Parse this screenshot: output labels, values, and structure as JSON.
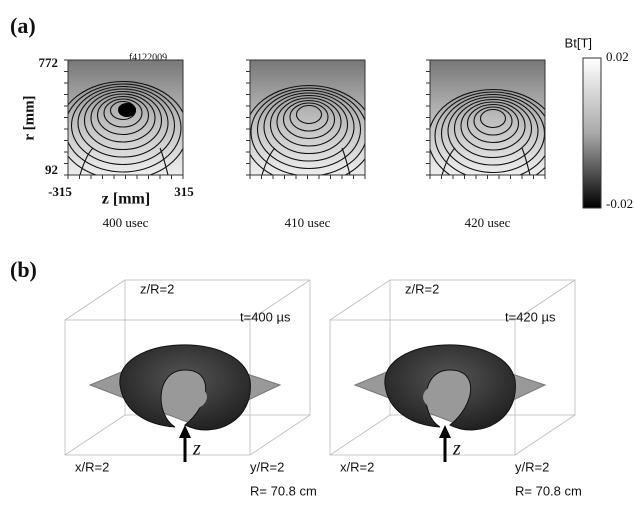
{
  "panel_a": {
    "label": "(a)",
    "shot": "f4122009",
    "r_axis_label": "r [mm]",
    "r_top": "772",
    "r_bottom": "92",
    "z_axis_label": "z [mm]",
    "z_left": "-315",
    "z_right": "315",
    "times": [
      "400 usec",
      "410 usec",
      "420 usec"
    ],
    "colorbar": {
      "title": "Bt[T]",
      "top": "0.02",
      "bottom": "-0.02"
    }
  },
  "panel_b": {
    "label": "(b)",
    "views": [
      {
        "time": "t=400 µs",
        "z_label": "z/R=2",
        "x_label": "x/R=2",
        "y_label": "y/R=2",
        "radius": "R= 70.8 cm",
        "arrow_label": "z"
      },
      {
        "time": "t=420 µs",
        "z_label": "z/R=2",
        "x_label": "x/R=2",
        "y_label": "y/R=2",
        "radius": "R= 70.8 cm",
        "arrow_label": "z"
      }
    ]
  }
}
